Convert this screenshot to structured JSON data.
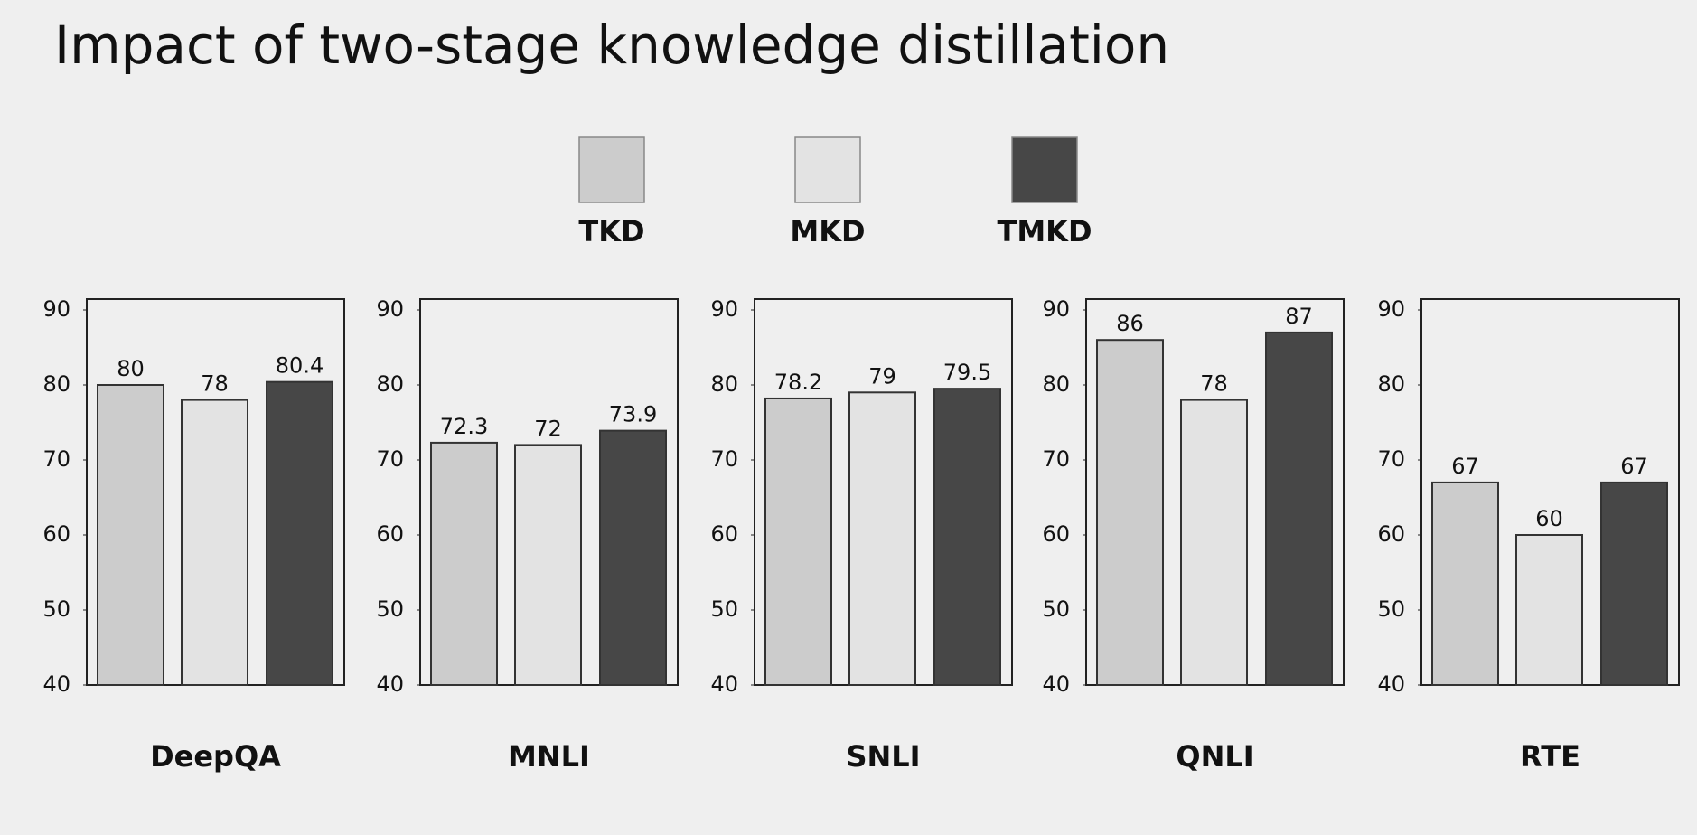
{
  "title": "Impact of two-stage knowledge distillation",
  "legend": [
    {
      "name": "TKD",
      "color": "#cccccc"
    },
    {
      "name": "MKD",
      "color": "#e3e3e3"
    },
    {
      "name": "TMKD",
      "color": "#474747"
    }
  ],
  "chart_data": [
    {
      "type": "bar",
      "label": "DeepQA",
      "values": [
        80,
        78,
        80.4
      ],
      "ylim": [
        40,
        90
      ],
      "yticks": [
        40,
        50,
        60,
        70,
        80,
        90
      ]
    },
    {
      "type": "bar",
      "label": "MNLI",
      "values": [
        72.3,
        72,
        73.9
      ],
      "ylim": [
        40,
        90
      ],
      "yticks": [
        40,
        50,
        60,
        70,
        80,
        90
      ]
    },
    {
      "type": "bar",
      "label": "SNLI",
      "values": [
        78.2,
        79,
        79.5
      ],
      "ylim": [
        40,
        90
      ],
      "yticks": [
        40,
        50,
        60,
        70,
        80,
        90
      ]
    },
    {
      "type": "bar",
      "label": "QNLI",
      "values": [
        86,
        78,
        87
      ],
      "ylim": [
        40,
        90
      ],
      "yticks": [
        40,
        50,
        60,
        70,
        80,
        90
      ]
    },
    {
      "type": "bar",
      "label": "RTE",
      "values": [
        67,
        60,
        67
      ],
      "ylim": [
        40,
        90
      ],
      "yticks": [
        40,
        50,
        60,
        70,
        80,
        90
      ]
    }
  ]
}
